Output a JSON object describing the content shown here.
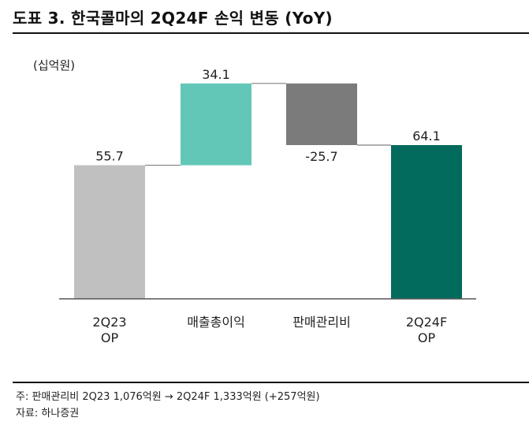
{
  "title": "도표 3. 한국콜마의 2Q24F 손익 변동 (YoY)",
  "chart_data": {
    "type": "waterfall",
    "unit_label": "(십억원)",
    "categories": [
      [
        "2Q23",
        "OP"
      ],
      [
        "매출총이익"
      ],
      [
        "판매관리비"
      ],
      [
        "2Q24F",
        "OP"
      ]
    ],
    "values": [
      55.7,
      34.1,
      -25.7,
      64.1
    ],
    "value_labels": [
      "55.7",
      "34.1",
      "-25.7",
      "64.1"
    ],
    "kinds": [
      "total",
      "increase",
      "decrease",
      "total"
    ],
    "ylim": [
      0,
      100
    ],
    "colors": {
      "start_total": "#c0c0c0",
      "increase": "#63c7b8",
      "decrease": "#7b7b7b",
      "end_total": "#036b5e",
      "connector": "#808080",
      "baseline": "#555555"
    }
  },
  "footnotes": {
    "note": "주: 판매관리비 2Q23 1,076억원 → 2Q24F 1,333억원 (+257억원)",
    "source": "자료: 하나증권"
  }
}
